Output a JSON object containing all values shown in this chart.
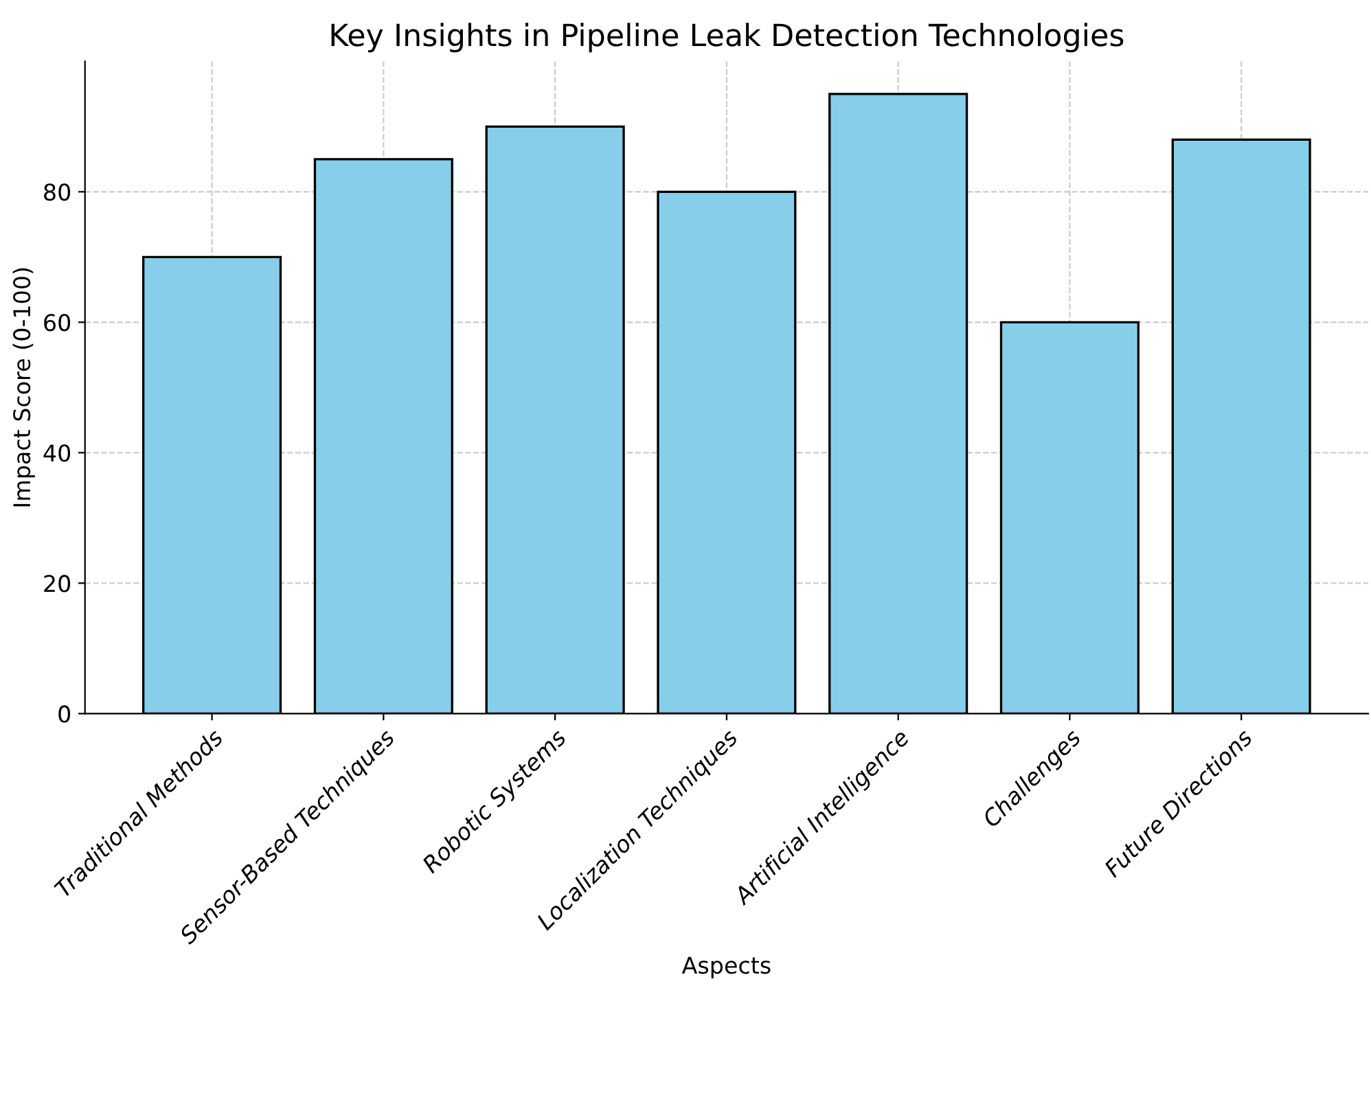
{
  "chart_data": {
    "type": "bar",
    "title": "Key Insights in Pipeline Leak Detection Technologies",
    "xlabel": "Aspects",
    "ylabel": "Impact Score (0-100)",
    "categories": [
      "Traditional Methods",
      "Sensor-Based Techniques",
      "Robotic Systems",
      "Localization Techniques",
      "Artificial Intelligence",
      "Challenges",
      "Future Directions"
    ],
    "values": [
      70,
      85,
      90,
      80,
      95,
      60,
      88
    ],
    "color": "#87ceeb",
    "ylim": [
      0,
      100
    ],
    "yticks": [
      0,
      20,
      40,
      60,
      80
    ],
    "grid": true
  }
}
